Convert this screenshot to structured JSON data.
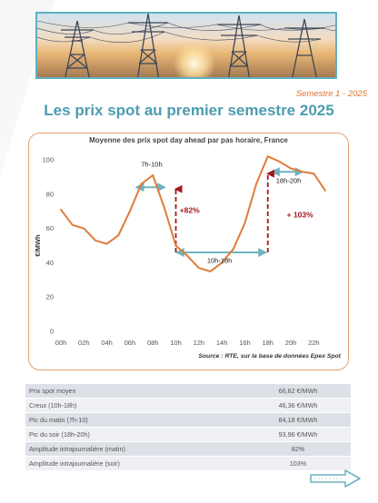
{
  "header": {
    "semester_label": "Semestre 1 - 2025",
    "page_title": "Les prix spot au premier semestre 2025"
  },
  "chart_data": {
    "type": "line",
    "title": "Moyenne des prix spot day ahead par pas horaire, France",
    "xlabel": "",
    "ylabel": "€/MWh",
    "ylim": [
      0,
      100
    ],
    "yticks": [
      0,
      20,
      40,
      60,
      80,
      100
    ],
    "x": [
      0,
      1,
      2,
      3,
      4,
      5,
      6,
      7,
      8,
      9,
      10,
      11,
      12,
      13,
      14,
      15,
      16,
      17,
      18,
      19,
      20,
      21,
      22,
      23
    ],
    "xtick_labels": [
      "00h",
      "02h",
      "04h",
      "06h",
      "08h",
      "10h",
      "12h",
      "14h",
      "16h",
      "18h",
      "20h",
      "22h"
    ],
    "xtick_positions": [
      0,
      2,
      4,
      6,
      8,
      10,
      12,
      14,
      16,
      18,
      20,
      22
    ],
    "series": [
      {
        "name": "",
        "values": [
          71,
          62,
          60,
          53,
          51,
          56,
          70,
          86,
          91,
          72,
          50,
          44,
          37,
          35,
          40,
          48,
          63,
          86,
          102,
          99,
          95,
          93,
          92,
          82
        ]
      }
    ],
    "annotations": {
      "morning_label": "7h-10h",
      "evening_label": "18h-20h",
      "trough_label": "10h-18h",
      "morning_amplitude": "+82%",
      "evening_amplitude": "+ 103%"
    },
    "grid": false,
    "source": "Source : RTE, sur la base de données Epex Spot",
    "colors": {
      "line": "#e07b39",
      "range_arrow": "#6fb3c0",
      "amplitude": "#a3191c"
    }
  },
  "stats": [
    {
      "label": "Prix spot moyen",
      "value": "66,62 €/MWh"
    },
    {
      "label": "Creux (10h-18h)",
      "value": "46,36 €/MWh"
    },
    {
      "label": "Pic du matin (7h-10)",
      "value": "84,18 €/MWh"
    },
    {
      "label": "Pic du soir (18h-20h)",
      "value": "93,96 €/MWh"
    },
    {
      "label": "Amplitude intrajournalière (matin)",
      "value": "82%"
    },
    {
      "label": "Amplitude intrajournalière (soir)",
      "value": "103%"
    }
  ],
  "icons": {
    "header_image": "power-lines-sunset-photo",
    "next_button": "arrow-right-icon"
  }
}
